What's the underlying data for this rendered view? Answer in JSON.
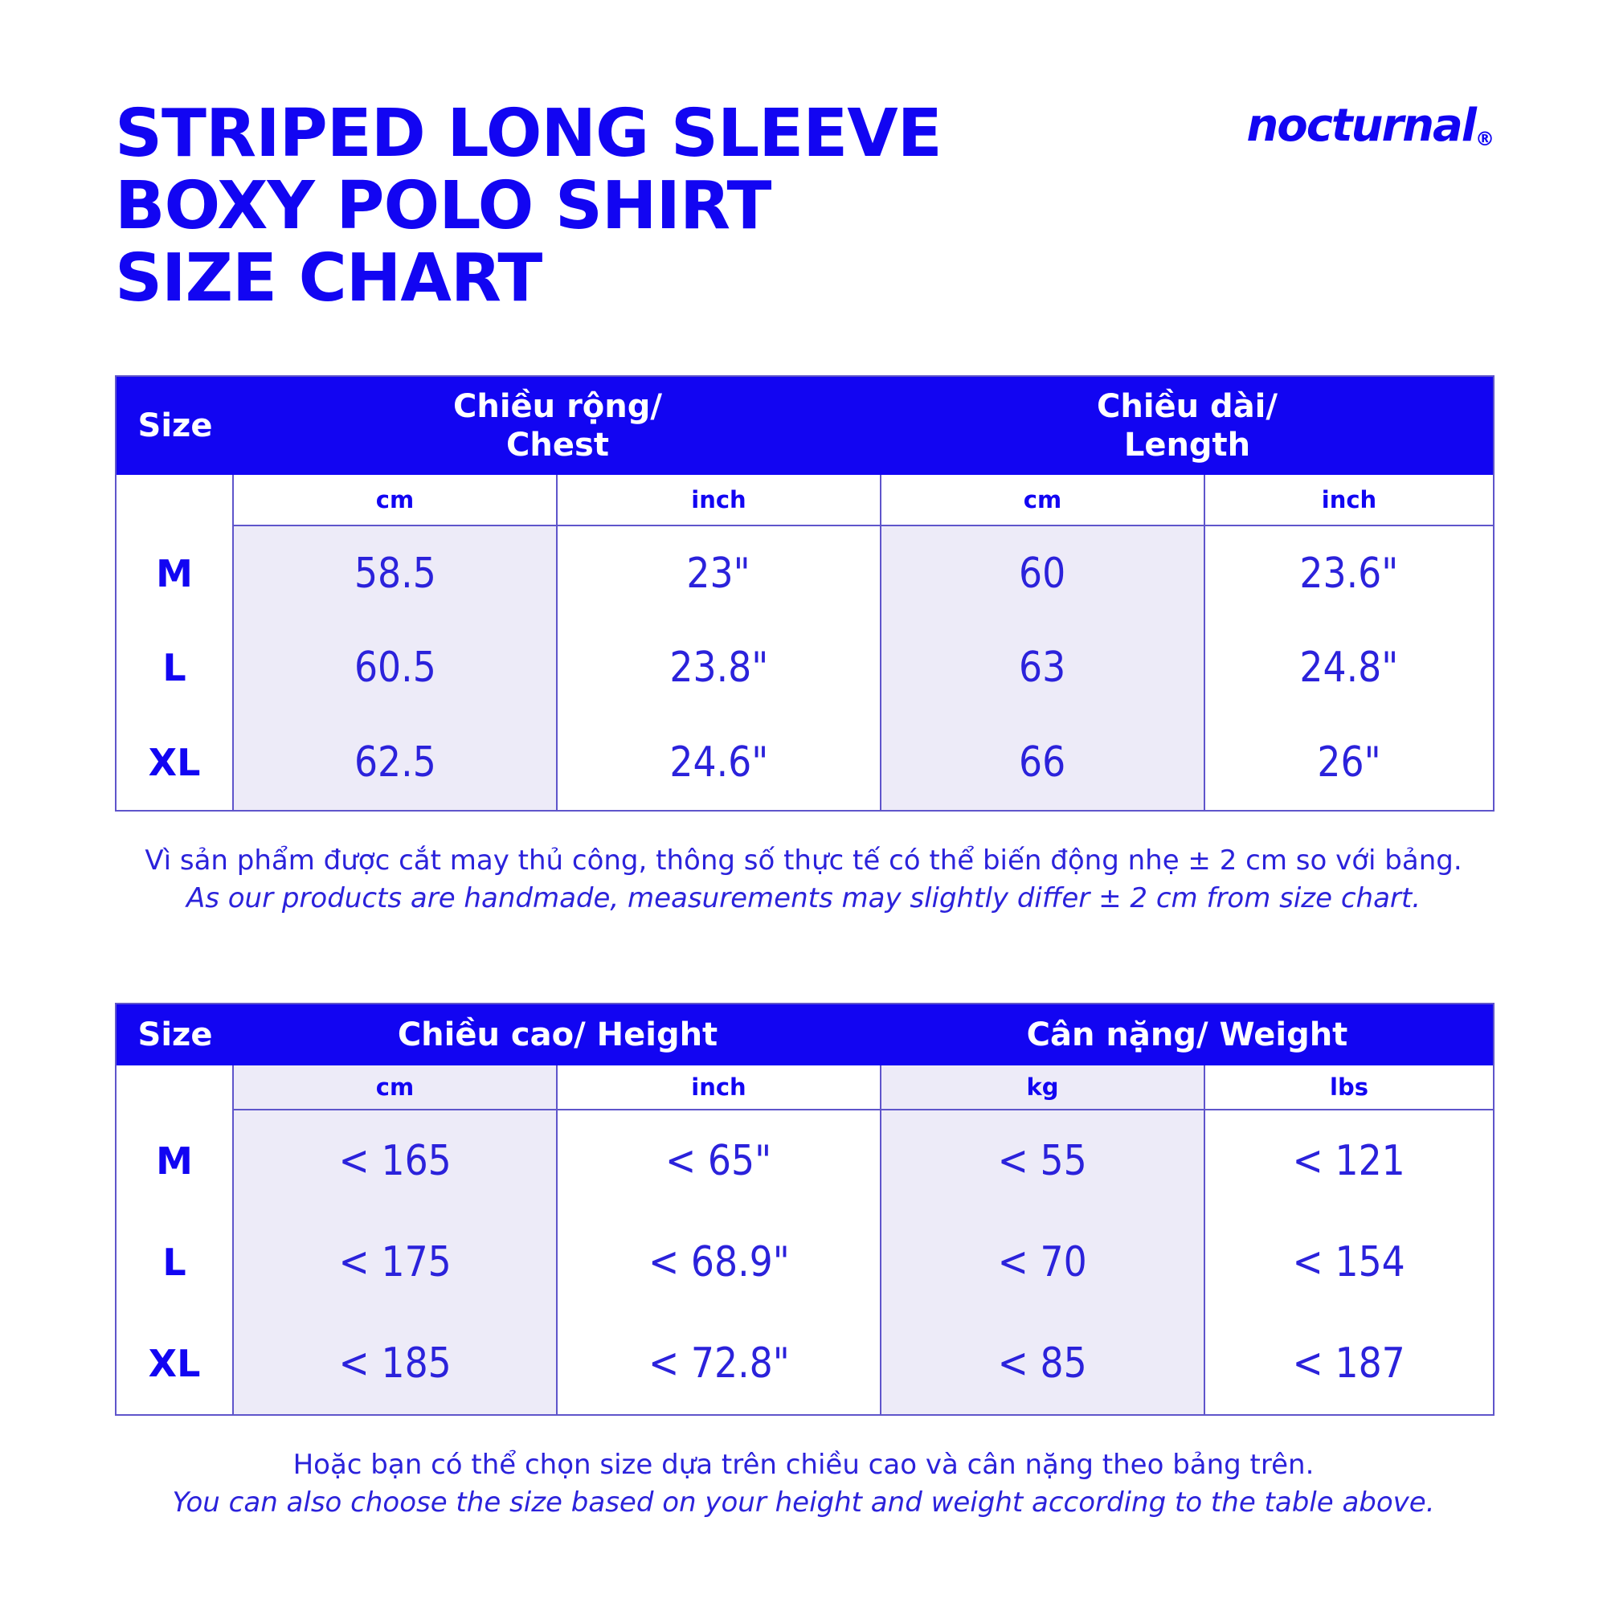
{
  "page": {
    "title_lines": [
      "STRIPED LONG SLEEVE",
      "BOXY POLO SHIRT",
      "SIZE CHART"
    ],
    "brand": "nocturnal",
    "brand_mark": "®"
  },
  "colors": {
    "primary_blue": "#1205f2",
    "text_blue": "#2b22db",
    "grid_border": "#5f55cb",
    "tint_lavender": "#edebf8",
    "header_text": "#ffffff"
  },
  "table1": {
    "size_header": "Size",
    "group_headers": [
      {
        "line1": "Chiều rộng/",
        "line2": "Chest"
      },
      {
        "line1": "Chiều dài/",
        "line2": "Length"
      }
    ],
    "unit_headers": [
      "cm",
      "inch",
      "cm",
      "inch"
    ],
    "rows": [
      {
        "size": "M",
        "values": [
          "58.5",
          "23\"",
          "60",
          "23.6\""
        ]
      },
      {
        "size": "L",
        "values": [
          "60.5",
          "23.8\"",
          "63",
          "24.8\""
        ]
      },
      {
        "size": "XL",
        "values": [
          "62.5",
          "24.6\"",
          "66",
          "26\""
        ]
      }
    ],
    "note_vi": "Vì sản phẩm được cắt may thủ công, thông số thực tế có thể biến động nhẹ ± 2 cm so với bảng.",
    "note_en": "As our products are handmade, measurements may slightly differ ± 2 cm from size chart."
  },
  "table2": {
    "size_header": "Size",
    "group_headers": [
      {
        "line1": "Chiều cao/ Height"
      },
      {
        "line1": "Cân nặng/ Weight"
      }
    ],
    "unit_headers": [
      "cm",
      "inch",
      "kg",
      "lbs"
    ],
    "rows": [
      {
        "size": "M",
        "values": [
          "< 165",
          "< 65\"",
          "< 55",
          "< 121"
        ]
      },
      {
        "size": "L",
        "values": [
          "< 175",
          "< 68.9\"",
          "< 70",
          "< 154"
        ]
      },
      {
        "size": "XL",
        "values": [
          "< 185",
          "< 72.8\"",
          "< 85",
          "< 187"
        ]
      }
    ],
    "note_vi": "Hoặc bạn có thể chọn size dựa trên chiều cao và cân nặng theo bảng trên.",
    "note_en": "You can also choose the size based on your height and weight according to the table above."
  }
}
